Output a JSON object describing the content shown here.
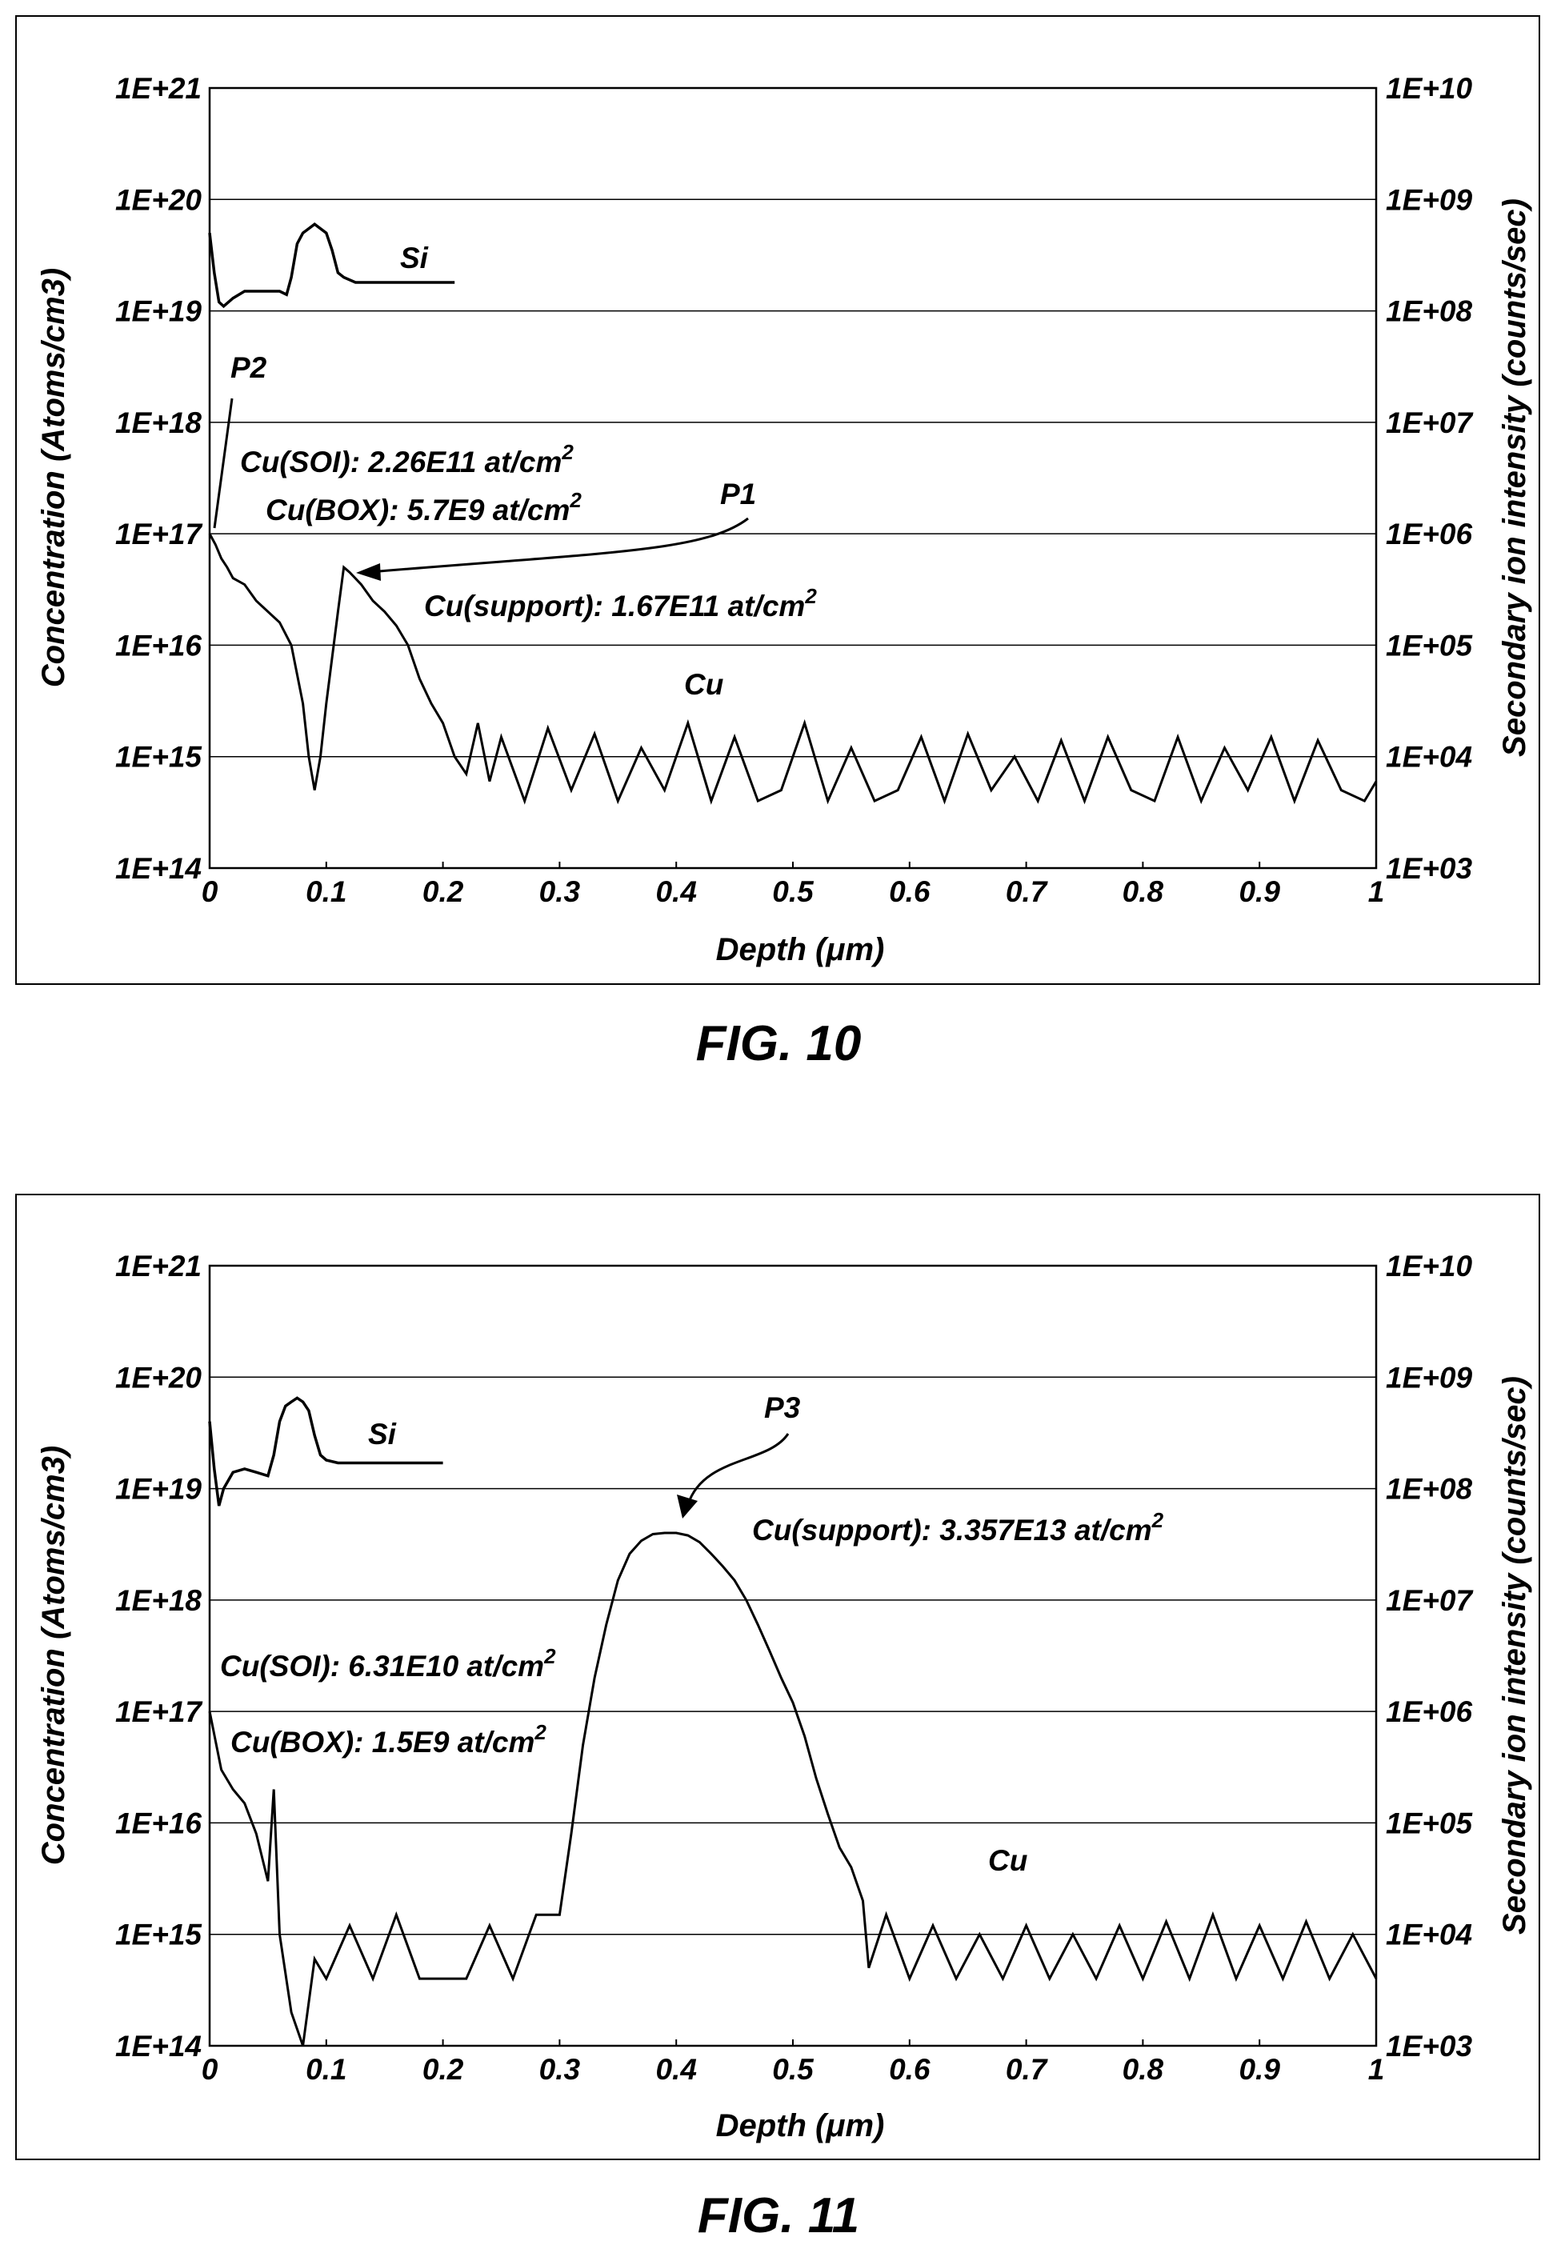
{
  "figures": [
    {
      "fig_label": "FIG. 10",
      "annotations": {
        "si": "Si",
        "cu": "Cu",
        "p1": "P1",
        "p2": "P2",
        "soi_prefix": "Cu(SOI): 2.26E11 at/cm",
        "box_prefix": "Cu(BOX): 5.7E9 at/cm",
        "support_prefix": "Cu(support): 1.67E11 at/cm",
        "sup": "2"
      }
    },
    {
      "fig_label": "FIG. 11",
      "annotations": {
        "si": "Si",
        "cu": "Cu",
        "p3": "P3",
        "soi_prefix": "Cu(SOI): 6.31E10 at/cm",
        "box_prefix": "Cu(BOX): 1.5E9 at/cm",
        "support_prefix": "Cu(support): 3.357E13 at/cm",
        "sup": "2"
      }
    }
  ],
  "chart_data": [
    {
      "type": "line",
      "xlabel": "Depth (μm)",
      "ylabel_left": "Concentration (Atoms/cm3)",
      "ylabel_right": "Secondary ion intensity (counts/sec)",
      "x_ticks": [
        "0",
        "0.1",
        "0.2",
        "0.3",
        "0.4",
        "0.5",
        "0.6",
        "0.7",
        "0.8",
        "0.9",
        "1"
      ],
      "y_ticks_left": [
        "1E+14",
        "1E+15",
        "1E+16",
        "1E+17",
        "1E+18",
        "1E+19",
        "1E+20",
        "1E+21"
      ],
      "y_ticks_right": [
        "1E+03",
        "1E+04",
        "1E+05",
        "1E+06",
        "1E+07",
        "1E+08",
        "1E+09",
        "1E+10"
      ],
      "xlim": [
        0,
        1
      ],
      "ylim_left": [
        100000000000000.0,
        1e+21
      ],
      "ylim_right": [
        1000.0,
        10000000000.0
      ],
      "yscale": "log",
      "grid": "horizontal",
      "series": [
        {
          "name": "Si",
          "axis": "right",
          "x": [
            0,
            0.004,
            0.008,
            0.012,
            0.02,
            0.03,
            0.05,
            0.06,
            0.066,
            0.07,
            0.075,
            0.08,
            0.09,
            0.1,
            0.105,
            0.11,
            0.115,
            0.125,
            0.15,
            0.2,
            0.21
          ],
          "y": [
            500000000.0,
            220000000.0,
            120000000.0,
            110000000.0,
            130000000.0,
            150000000.0,
            150000000.0,
            150000000.0,
            140000000.0,
            200000000.0,
            400000000.0,
            500000000.0,
            600000000.0,
            500000000.0,
            350000000.0,
            220000000.0,
            200000000.0,
            180000000.0,
            180000000.0,
            180000000.0,
            180000000.0
          ]
        },
        {
          "name": "Cu",
          "axis": "left",
          "peak_labels": [
            "P2 (surface spike, x≈0.02)",
            "P1 (x≈0.115)"
          ],
          "x": [
            0,
            0.005,
            0.01,
            0.015,
            0.02,
            0.03,
            0.04,
            0.05,
            0.06,
            0.07,
            0.08,
            0.085,
            0.09,
            0.095,
            0.1,
            0.11,
            0.115,
            0.12,
            0.13,
            0.14,
            0.15,
            0.16,
            0.17,
            0.18,
            0.19,
            0.2,
            0.21,
            0.22,
            0.23,
            0.24,
            0.25,
            0.27,
            0.29,
            0.31,
            0.33,
            0.35,
            0.37,
            0.39,
            0.41,
            0.43,
            0.45,
            0.47,
            0.49,
            0.51,
            0.53,
            0.55,
            0.57,
            0.59,
            0.61,
            0.63,
            0.65,
            0.67,
            0.69,
            0.71,
            0.73,
            0.75,
            0.77,
            0.79,
            0.81,
            0.83,
            0.85,
            0.87,
            0.89,
            0.91,
            0.93,
            0.95,
            0.97,
            0.99,
            1.0
          ],
          "y": [
            1e+17,
            8e+16,
            6e+16,
            5e+16,
            4e+16,
            3.5e+16,
            2.5e+16,
            2e+16,
            1.6e+16,
            1e+16,
            3000000000000000.0,
            1000000000000000.0,
            500000000000000.0,
            1000000000000000.0,
            3000000000000000.0,
            2e+16,
            5e+16,
            4.5e+16,
            3.5e+16,
            2.5e+16,
            2e+16,
            1.5e+16,
            1e+16,
            5000000000000000.0,
            3000000000000000.0,
            2000000000000000.0,
            1000000000000000.0,
            700000000000000.0,
            2000000000000000.0,
            600000000000000.0,
            1500000000000000.0,
            400000000000000.0,
            1800000000000000.0,
            500000000000000.0,
            1600000000000000.0,
            400000000000000.0,
            1200000000000000.0,
            500000000000000.0,
            2000000000000000.0,
            400000000000000.0,
            1500000000000000.0,
            400000000000000.0,
            500000000000000.0,
            2000000000000000.0,
            400000000000000.0,
            1200000000000000.0,
            400000000000000.0,
            500000000000000.0,
            1500000000000000.0,
            400000000000000.0,
            1600000000000000.0,
            500000000000000.0,
            1000000000000000.0,
            400000000000000.0,
            1400000000000000.0,
            400000000000000.0,
            1500000000000000.0,
            500000000000000.0,
            400000000000000.0,
            1500000000000000.0,
            400000000000000.0,
            1200000000000000.0,
            500000000000000.0,
            1500000000000000.0,
            400000000000000.0,
            1400000000000000.0,
            500000000000000.0,
            400000000000000.0,
            600000000000000.0
          ]
        }
      ]
    },
    {
      "type": "line",
      "xlabel": "Depth (μm)",
      "ylabel_left": "Concentration (Atoms/cm3)",
      "ylabel_right": "Secondary ion intensity (counts/sec)",
      "x_ticks": [
        "0",
        "0.1",
        "0.2",
        "0.3",
        "0.4",
        "0.5",
        "0.6",
        "0.7",
        "0.8",
        "0.9",
        "1"
      ],
      "y_ticks_left": [
        "1E+14",
        "1E+15",
        "1E+16",
        "1E+17",
        "1E+18",
        "1E+19",
        "1E+20",
        "1E+21"
      ],
      "y_ticks_right": [
        "1E+03",
        "1E+04",
        "1E+05",
        "1E+06",
        "1E+07",
        "1E+08",
        "1E+09",
        "1E+10"
      ],
      "xlim": [
        0,
        1
      ],
      "ylim_left": [
        100000000000000.0,
        1e+21
      ],
      "ylim_right": [
        1000.0,
        10000000000.0
      ],
      "yscale": "log",
      "grid": "horizontal",
      "series": [
        {
          "name": "Si",
          "axis": "right",
          "x": [
            0,
            0.004,
            0.008,
            0.012,
            0.02,
            0.03,
            0.04,
            0.05,
            0.055,
            0.06,
            0.065,
            0.07,
            0.075,
            0.08,
            0.085,
            0.09,
            0.095,
            0.1,
            0.11,
            0.15,
            0.2
          ],
          "y": [
            400000000.0,
            150000000.0,
            70000000.0,
            100000000.0,
            140000000.0,
            150000000.0,
            140000000.0,
            130000000.0,
            200000000.0,
            400000000.0,
            550000000.0,
            600000000.0,
            650000000.0,
            600000000.0,
            500000000.0,
            300000000.0,
            200000000.0,
            180000000.0,
            170000000.0,
            170000000.0,
            170000000.0
          ]
        },
        {
          "name": "Cu",
          "axis": "left",
          "peak_labels": [
            "P3 (x≈0.4)"
          ],
          "x": [
            0,
            0.01,
            0.02,
            0.03,
            0.04,
            0.05,
            0.055,
            0.06,
            0.07,
            0.08,
            0.09,
            0.1,
            0.12,
            0.14,
            0.16,
            0.18,
            0.2,
            0.22,
            0.24,
            0.26,
            0.28,
            0.3,
            0.31,
            0.32,
            0.33,
            0.34,
            0.35,
            0.36,
            0.37,
            0.38,
            0.39,
            0.4,
            0.41,
            0.42,
            0.43,
            0.44,
            0.45,
            0.46,
            0.47,
            0.48,
            0.49,
            0.5,
            0.51,
            0.52,
            0.53,
            0.54,
            0.55,
            0.56,
            0.565,
            0.58,
            0.6,
            0.62,
            0.64,
            0.66,
            0.68,
            0.7,
            0.72,
            0.74,
            0.76,
            0.78,
            0.8,
            0.82,
            0.84,
            0.86,
            0.88,
            0.9,
            0.92,
            0.94,
            0.96,
            0.98,
            1.0
          ],
          "y": [
            1e+17,
            3e+16,
            2e+16,
            1.5e+16,
            8000000000000000.0,
            3000000000000000.0,
            2e+16,
            1000000000000000.0,
            200000000000000.0,
            100000000000000.0,
            600000000000000.0,
            400000000000000.0,
            1200000000000000.0,
            400000000000000.0,
            1500000000000000.0,
            400000000000000.0,
            400000000000000.0,
            400000000000000.0,
            1200000000000000.0,
            400000000000000.0,
            1500000000000000.0,
            1500000000000000.0,
            8000000000000000.0,
            5e+16,
            2e+17,
            6e+17,
            1.5e+18,
            2.6e+18,
            3.4e+18,
            3.9e+18,
            4e+18,
            4e+18,
            3.8e+18,
            3.3e+18,
            2.6e+18,
            2e+18,
            1.5e+18,
            1e+18,
            6e+17,
            3.5e+17,
            2e+17,
            1.2e+17,
            6e+16,
            2.5e+16,
            1.2e+16,
            6000000000000000.0,
            4000000000000000.0,
            2000000000000000.0,
            500000000000000.0,
            1500000000000000.0,
            400000000000000.0,
            1200000000000000.0,
            400000000000000.0,
            1000000000000000.0,
            400000000000000.0,
            1200000000000000.0,
            400000000000000.0,
            1000000000000000.0,
            400000000000000.0,
            1200000000000000.0,
            400000000000000.0,
            1300000000000000.0,
            400000000000000.0,
            1500000000000000.0,
            400000000000000.0,
            1200000000000000.0,
            400000000000000.0,
            1300000000000000.0,
            400000000000000.0,
            1000000000000000.0,
            400000000000000.0
          ]
        }
      ]
    }
  ]
}
